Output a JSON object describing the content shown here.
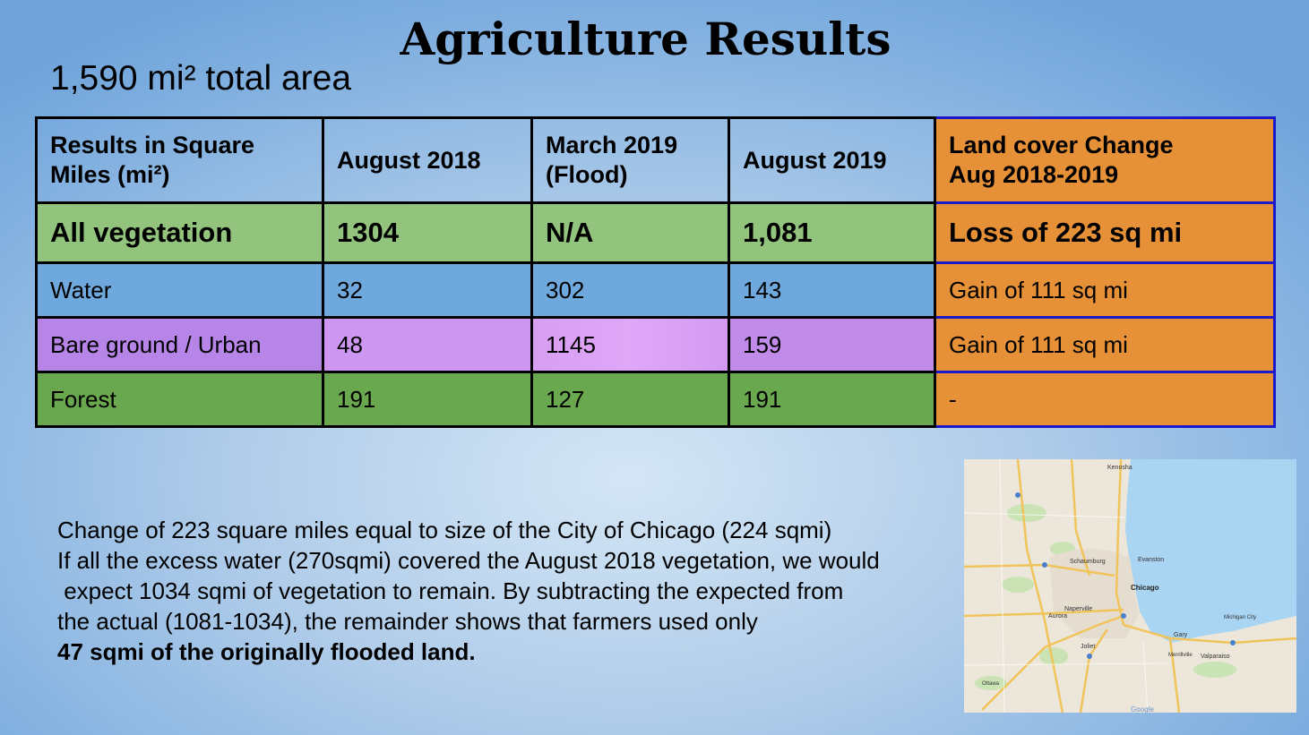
{
  "title": "Agriculture Results",
  "subtitle": "1,590 mi² total area",
  "table": {
    "headers": [
      "Results in Square Miles (mi²)",
      "August 2018",
      "March 2019 (Flood)",
      "August 2019",
      "Land cover Change Aug 2018-2019"
    ],
    "header_lines": [
      [
        "Results in Square",
        "Miles (mi²)"
      ],
      [
        "August 2018",
        ""
      ],
      [
        "March 2019",
        "(Flood)"
      ],
      [
        "August 2019",
        ""
      ],
      [
        "Land cover Change",
        "Aug 2018-2019"
      ]
    ],
    "rows": [
      [
        "All vegetation",
        "1304",
        "N/A",
        "1,081",
        "Loss of 223 sq mi"
      ],
      [
        "Water",
        "32",
        "302",
        "143",
        "Gain of 111 sq mi"
      ],
      [
        "Bare ground / Urban",
        "48",
        "1145",
        "159",
        "Gain of 111 sq mi"
      ],
      [
        "Forest",
        "191",
        "127",
        "191",
        "-"
      ]
    ]
  },
  "paragraph": {
    "lines": [
      "Change of 223 square miles equal to size of the City of Chicago (224 sqmi)",
      "If all the excess water (270sqmi) covered the August 2018 vegetation, we would",
      " expect 1034 sqmi of vegetation to remain. By subtracting the expected from",
      "the actual (1081-1034), the remainder shows that farmers used only"
    ],
    "bold_line": "47 sqmi of the originally flooded land."
  },
  "map": {
    "labels": {
      "kenosha": "Kenosha",
      "schaumburg": "Schaumburg",
      "evanston": "Evanston",
      "chicago": "Chicago",
      "naperville": "Naperville",
      "aurora": "Aurora",
      "joliet": "Joliet",
      "gary": "Gary",
      "valparaiso": "Valparaiso",
      "michigan_city": "Michigan City",
      "merrillville": "Merrillville",
      "ottawa": "Ottawa",
      "google": "Google"
    },
    "colors": {
      "land": "#ece7da",
      "water": "#a9d4f2",
      "highway": "#f0c45a",
      "green": "#c8e3b0"
    }
  }
}
